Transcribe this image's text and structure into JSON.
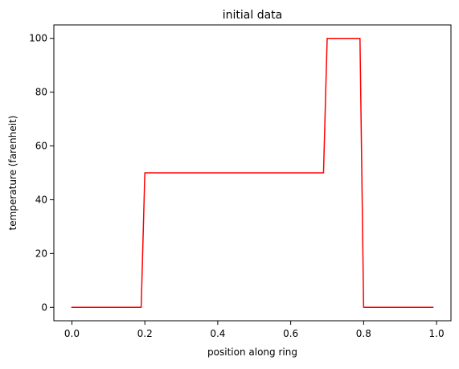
{
  "chart_data": {
    "type": "line",
    "title": "initial data",
    "xlabel": "position along ring",
    "ylabel": "temperature (farenheit)",
    "xlim": [
      -0.0495,
      1.0395
    ],
    "ylim": [
      -5,
      105
    ],
    "xticks": [
      0.0,
      0.2,
      0.4,
      0.6,
      0.8,
      1.0
    ],
    "xtick_labels": [
      "0.0",
      "0.2",
      "0.4",
      "0.6",
      "0.8",
      "1.0"
    ],
    "yticks": [
      0,
      20,
      40,
      60,
      80,
      100
    ],
    "ytick_labels": [
      "0",
      "20",
      "40",
      "60",
      "80",
      "100"
    ],
    "grid": false,
    "legend": "none",
    "series": [
      {
        "color": "#ff0000",
        "x": [
          0.0,
          0.19,
          0.2,
          0.69,
          0.7,
          0.79,
          0.8,
          0.99
        ],
        "y": [
          0,
          0,
          50,
          50,
          100,
          100,
          0,
          0
        ]
      }
    ]
  }
}
